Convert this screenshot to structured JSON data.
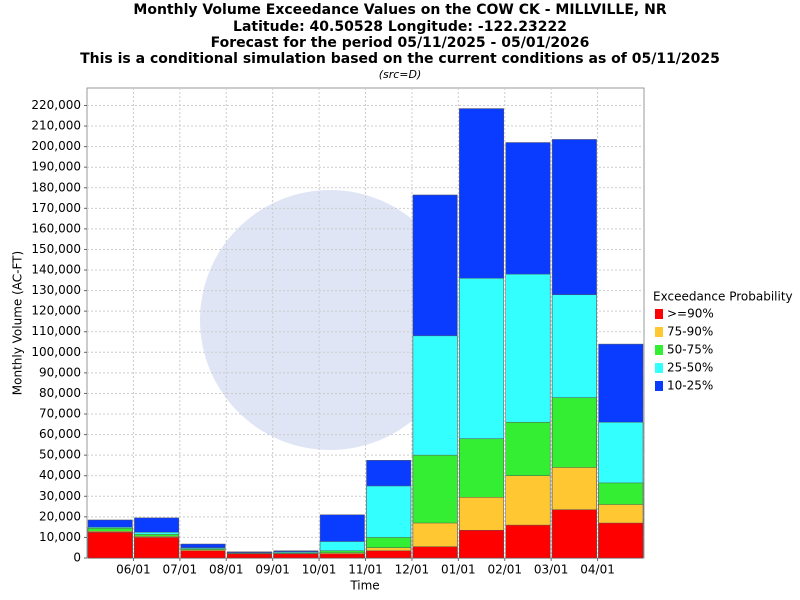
{
  "chart_data": {
    "type": "bar",
    "title": [
      "Monthly Volume Exceedance Values on the COW CK - MILLVILLE, NR",
      "Latitude: 40.50528 Longitude: -122.23222",
      "Forecast for the period 05/11/2025 - 05/01/2026",
      "This is a conditional simulation based on the current conditions as of 05/11/2025"
    ],
    "subtitle": "(src=D)",
    "x_label": "Time",
    "y_label": "Monthly Volume (AC-FT)",
    "legend_title": "Exceedance Probability",
    "xticks": [
      "06/01",
      "07/01",
      "08/01",
      "09/01",
      "10/01",
      "11/01",
      "12/01",
      "01/01",
      "02/01",
      "03/01",
      "04/01"
    ],
    "series": [
      {
        "name": ">=90%",
        "color": "#ff0000",
        "values": [
          12500,
          10000,
          3500,
          2000,
          2000,
          2000,
          3500,
          5500,
          13500,
          16000,
          23500,
          17000
        ]
      },
      {
        "name": "75-90%",
        "color": "#ffc832",
        "values": [
          13000,
          10500,
          4000,
          2200,
          2200,
          2500,
          5000,
          17000,
          29500,
          40000,
          44000,
          26000
        ]
      },
      {
        "name": "50-75%",
        "color": "#33ee33",
        "values": [
          14500,
          11500,
          4500,
          2400,
          2500,
          3500,
          10000,
          50000,
          58000,
          66000,
          78000,
          36500
        ]
      },
      {
        "name": "25-50%",
        "color": "#33ffff",
        "values": [
          15000,
          12500,
          5000,
          2600,
          3000,
          8000,
          35000,
          108000,
          136000,
          138000,
          128000,
          66000
        ]
      },
      {
        "name": "10-25%",
        "color": "#0a3cff",
        "values": [
          18500,
          19500,
          6800,
          3000,
          3500,
          21000,
          47500,
          176500,
          218500,
          202000,
          203500,
          104000
        ]
      }
    ],
    "ylim": [
      0,
      228500
    ],
    "yticks": [
      0,
      {
        "value": 10000,
        "label": "10,000"
      },
      {
        "value": 20000,
        "label": "20,000"
      },
      {
        "value": 30000,
        "label": "30,000"
      },
      {
        "value": 40000,
        "label": "40,000"
      },
      {
        "value": 50000,
        "label": "50,000"
      },
      {
        "value": 60000,
        "label": "60,000"
      },
      {
        "value": 70000,
        "label": "70,000"
      },
      {
        "value": 80000,
        "label": "80,000"
      },
      {
        "value": 90000,
        "label": "90,000"
      },
      {
        "value": 100000,
        "label": "100,000"
      },
      {
        "value": 110000,
        "label": "110,000"
      },
      {
        "value": 120000,
        "label": "120,000"
      },
      {
        "value": 130000,
        "label": "130,000"
      },
      {
        "value": 140000,
        "label": "140,000"
      },
      {
        "value": 150000,
        "label": "150,000"
      },
      {
        "value": 160000,
        "label": "160,000"
      },
      {
        "value": 170000,
        "label": "170,000"
      },
      {
        "value": 180000,
        "label": "180,000"
      },
      {
        "value": 190000,
        "label": "190,000"
      },
      {
        "value": 200000,
        "label": "200,000"
      },
      {
        "value": 210000,
        "label": "210,000"
      },
      {
        "value": 220000,
        "label": "220,000"
      }
    ],
    "grid": true
  }
}
